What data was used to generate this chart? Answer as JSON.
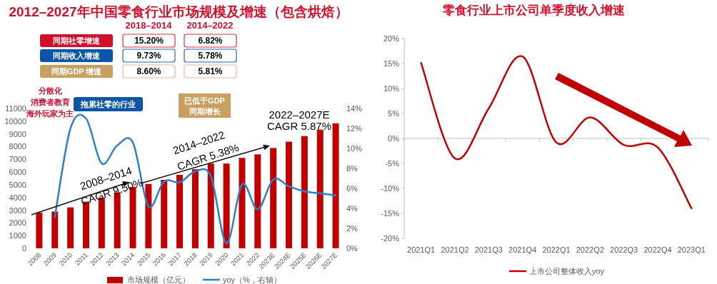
{
  "chart_data": [
    {
      "type": "bar",
      "title": "2012–2027年中国零食行业市场规模及增速（包含烘焙）",
      "categories": [
        "2008",
        "2009",
        "2010",
        "2011",
        "2012",
        "2013",
        "2014",
        "2015",
        "2016",
        "2017",
        "2018",
        "2019",
        "2020",
        "2021",
        "2022",
        "2023E",
        "2024E",
        "2025E",
        "2026E",
        "2027E"
      ],
      "series": [
        {
          "name": "市场规模（亿元）",
          "color": "#c00000",
          "values": [
            2800,
            2890,
            3220,
            3670,
            4000,
            4410,
            4830,
            5060,
            5390,
            5780,
            6220,
            6670,
            6670,
            7110,
            7390,
            7890,
            8390,
            8830,
            9330,
            9830
          ]
        },
        {
          "name": "yoy（%，右轴）",
          "type": "line",
          "axis": "y2",
          "color": "#2e7fcb",
          "values": [
            null,
            3.1,
            12.0,
            13.0,
            8.5,
            10.3,
            10.6,
            4.2,
            6.7,
            6.6,
            7.7,
            7.2,
            0.5,
            6.4,
            3.9,
            6.9,
            6.2,
            5.7,
            5.5,
            5.3
          ]
        }
      ],
      "ylim": [
        0,
        11000
      ],
      "yticks": [
        0,
        1000,
        2000,
        3000,
        4000,
        5000,
        6000,
        7000,
        8000,
        9000,
        10000,
        11000
      ],
      "y2lim": [
        0,
        14
      ],
      "y2ticks": [
        {
          "value": 0,
          "label": "0%"
        },
        {
          "value": 2,
          "label": "2%"
        },
        {
          "value": 4,
          "label": "4%"
        },
        {
          "value": 6,
          "label": "6%"
        },
        {
          "value": 8,
          "label": "8%"
        },
        {
          "value": 10,
          "label": "10%"
        },
        {
          "value": 12,
          "label": "12%"
        },
        {
          "value": 14,
          "label": "14%"
        }
      ],
      "legend": "bottom",
      "annotations": [
        "2018–2014",
        "2014–2022",
        "同期社零增速",
        "15.20%",
        "6.82%",
        "同期收入增速",
        "9.73%",
        "5.78%",
        "同期GDP 增速",
        "8.60%",
        "5.81%",
        "分散化",
        "消费者教育",
        "海外玩家为主",
        "拖累社零的行业",
        "已低于GDP",
        "同期增长",
        "2008–2014",
        "CAGR 9.50%",
        "2014–2022",
        "CAGR 5.38%",
        "2022–2027E",
        "CAGR 5.87%"
      ]
    },
    {
      "type": "line",
      "title": "零食行业上市公司单季度收入增速",
      "categories": [
        "2021Q1",
        "2021Q2",
        "2021Q3",
        "2021Q4",
        "2022Q1",
        "2022Q2",
        "2022Q3",
        "2022Q4",
        "2023Q1"
      ],
      "series": [
        {
          "name": "上市公司整体收入yoy",
          "color": "#c00000",
          "values": [
            15.1,
            -4.0,
            6.0,
            16.4,
            -0.8,
            4.2,
            -1.3,
            -1.8,
            -14.0
          ]
        }
      ],
      "ylim": [
        -20,
        20
      ],
      "yticks": [
        {
          "value": -20,
          "label": "-20%"
        },
        {
          "value": -15,
          "label": "-15%"
        },
        {
          "value": -10,
          "label": "-10%"
        },
        {
          "value": -5,
          "label": "-5%"
        },
        {
          "value": 0,
          "label": "0%"
        },
        {
          "value": 5,
          "label": "5%"
        },
        {
          "value": 10,
          "label": "10%"
        },
        {
          "value": 15,
          "label": "15%"
        },
        {
          "value": 20,
          "label": "20%"
        }
      ],
      "legend": "bottom"
    }
  ]
}
